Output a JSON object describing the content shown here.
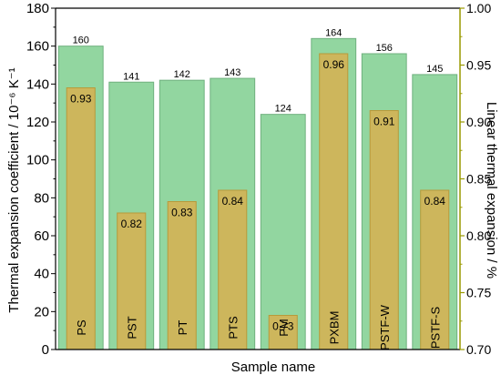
{
  "chart_data": {
    "type": "bar",
    "xlabel": "Sample name",
    "ylabel": "Thermal expansion coefficient / 10⁻⁶ K⁻¹",
    "y2label": "Linear thermal expansion / %",
    "categories": [
      "PS",
      "PST",
      "PT",
      "PTS",
      "PM",
      "PXBM",
      "PSTF-W",
      "PSTF-S"
    ],
    "series": [
      {
        "axis": "left",
        "values": [
          160,
          141,
          142,
          143,
          124,
          164,
          156,
          145
        ],
        "labels": [
          "160",
          "141",
          "142",
          "143",
          "124",
          "164",
          "156",
          "145"
        ],
        "color": "#7fcf8f"
      },
      {
        "axis": "right",
        "values": [
          0.93,
          0.82,
          0.83,
          0.84,
          0.73,
          0.96,
          0.91,
          0.84
        ],
        "labels": [
          "0.93",
          "0.82",
          "0.83",
          "0.84",
          "0.73",
          "0.96",
          "0.91",
          "0.84"
        ],
        "color": "#d7b050"
      }
    ],
    "ylim": [
      0,
      180
    ],
    "yticks": [
      "0",
      "20",
      "40",
      "60",
      "80",
      "100",
      "120",
      "140",
      "160",
      "180"
    ],
    "y2lim": [
      0.7,
      1.0
    ],
    "y2ticks": [
      "0.70",
      "0.75",
      "0.80",
      "0.85",
      "0.90",
      "0.95",
      "1.00"
    ],
    "right_axis_color": "#9a9a00",
    "grid": false,
    "legend": "none"
  }
}
